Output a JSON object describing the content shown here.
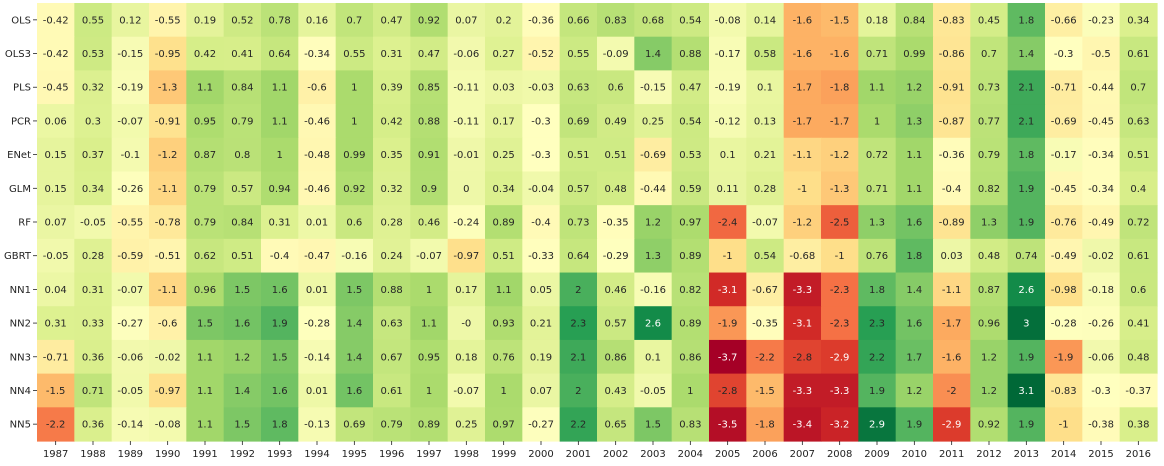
{
  "chart_data": {
    "type": "heatmap",
    "title": "",
    "xlabel": "",
    "ylabel": "",
    "x": [
      "1987",
      "1988",
      "1989",
      "1990",
      "1991",
      "1992",
      "1993",
      "1994",
      "1995",
      "1996",
      "1997",
      "1998",
      "1999",
      "2000",
      "2001",
      "2002",
      "2003",
      "2004",
      "2005",
      "2006",
      "2007",
      "2008",
      "2009",
      "2010",
      "2011",
      "2012",
      "2013",
      "2014",
      "2015",
      "2016"
    ],
    "y": [
      "OLS",
      "OLS3",
      "PLS",
      "PCR",
      "ENet",
      "GLM",
      "RF",
      "GBRT",
      "NN1",
      "NN2",
      "NN3",
      "NN4",
      "NN5"
    ],
    "values": [
      [
        "-0.42",
        "0.55",
        "0.12",
        "-0.55",
        "0.19",
        "0.52",
        "0.78",
        "0.16",
        "0.7",
        "0.47",
        "0.92",
        "0.07",
        "0.2",
        "-0.36",
        "0.66",
        "0.83",
        "0.68",
        "0.54",
        "-0.08",
        "0.14",
        "-1.6",
        "-1.5",
        "0.18",
        "0.84",
        "-0.83",
        "0.45",
        "1.8",
        "-0.66",
        "-0.23",
        "0.34"
      ],
      [
        "-0.42",
        "0.53",
        "-0.15",
        "-0.95",
        "0.42",
        "0.41",
        "0.64",
        "-0.34",
        "0.55",
        "0.31",
        "0.47",
        "-0.06",
        "0.27",
        "-0.52",
        "0.55",
        "-0.09",
        "1.4",
        "0.88",
        "-0.17",
        "0.58",
        "-1.6",
        "-1.6",
        "0.71",
        "0.99",
        "-0.86",
        "0.7",
        "1.4",
        "-0.3",
        "-0.5",
        "0.61"
      ],
      [
        "-0.45",
        "0.32",
        "-0.19",
        "-1.3",
        "1.1",
        "0.84",
        "1.1",
        "-0.6",
        "1",
        "0.39",
        "0.85",
        "-0.11",
        "0.03",
        "-0.03",
        "0.63",
        "0.6",
        "-0.15",
        "0.47",
        "-0.19",
        "0.1",
        "-1.7",
        "-1.8",
        "1.1",
        "1.2",
        "-0.91",
        "0.73",
        "2.1",
        "-0.71",
        "-0.44",
        "0.7"
      ],
      [
        "0.06",
        "0.3",
        "-0.07",
        "-0.91",
        "0.95",
        "0.79",
        "1.1",
        "-0.46",
        "1",
        "0.42",
        "0.88",
        "-0.11",
        "0.17",
        "-0.3",
        "0.69",
        "0.49",
        "0.25",
        "0.54",
        "-0.12",
        "0.13",
        "-1.7",
        "-1.7",
        "1",
        "1.3",
        "-0.87",
        "0.77",
        "2.1",
        "-0.69",
        "-0.45",
        "0.63"
      ],
      [
        "0.15",
        "0.37",
        "-0.1",
        "-1.2",
        "0.87",
        "0.8",
        "1",
        "-0.48",
        "0.99",
        "0.35",
        "0.91",
        "-0.01",
        "0.25",
        "-0.3",
        "0.51",
        "0.51",
        "-0.69",
        "0.53",
        "0.1",
        "0.21",
        "-1.1",
        "-1.2",
        "0.72",
        "1.1",
        "-0.36",
        "0.79",
        "1.8",
        "-0.17",
        "-0.34",
        "0.51"
      ],
      [
        "0.15",
        "0.34",
        "-0.26",
        "-1.1",
        "0.79",
        "0.57",
        "0.94",
        "-0.46",
        "0.92",
        "0.32",
        "0.9",
        "0",
        "0.34",
        "-0.04",
        "0.57",
        "0.48",
        "-0.44",
        "0.59",
        "0.11",
        "0.28",
        "-1",
        "-1.3",
        "0.71",
        "1.1",
        "-0.4",
        "0.82",
        "1.9",
        "-0.45",
        "-0.34",
        "0.4"
      ],
      [
        "0.07",
        "-0.05",
        "-0.55",
        "-0.78",
        "0.79",
        "0.84",
        "0.31",
        "0.01",
        "0.6",
        "0.28",
        "0.46",
        "-0.24",
        "0.89",
        "-0.4",
        "0.73",
        "-0.35",
        "1.2",
        "0.97",
        "-2.4",
        "-0.07",
        "-1.2",
        "-2.5",
        "1.3",
        "1.6",
        "-0.89",
        "1.3",
        "1.9",
        "-0.76",
        "-0.49",
        "0.72"
      ],
      [
        "-0.05",
        "0.28",
        "-0.59",
        "-0.51",
        "0.62",
        "0.51",
        "-0.4",
        "-0.47",
        "-0.16",
        "0.24",
        "-0.07",
        "-0.97",
        "0.51",
        "-0.33",
        "0.64",
        "-0.29",
        "1.3",
        "0.89",
        "-1",
        "0.54",
        "-0.68",
        "-1",
        "0.76",
        "1.8",
        "0.03",
        "0.48",
        "0.74",
        "-0.49",
        "-0.02",
        "0.61"
      ],
      [
        "0.04",
        "0.31",
        "-0.07",
        "-1.1",
        "0.96",
        "1.5",
        "1.6",
        "0.01",
        "1.5",
        "0.88",
        "1",
        "0.17",
        "1.1",
        "0.05",
        "2",
        "0.46",
        "-0.16",
        "0.82",
        "-3.1",
        "-0.67",
        "-3.3",
        "-2.3",
        "1.8",
        "1.4",
        "-1.1",
        "0.87",
        "2.6",
        "-0.98",
        "-0.18",
        "0.6"
      ],
      [
        "0.31",
        "0.33",
        "-0.27",
        "-0.6",
        "1.5",
        "1.6",
        "1.9",
        "-0.28",
        "1.4",
        "0.63",
        "1.1",
        "-0",
        "0.93",
        "0.21",
        "2.3",
        "0.57",
        "2.6",
        "0.89",
        "-1.9",
        "-0.35",
        "-3.1",
        "-2.3",
        "2.3",
        "1.6",
        "-1.7",
        "0.96",
        "3",
        "-0.28",
        "-0.26",
        "0.41"
      ],
      [
        "-0.71",
        "0.36",
        "-0.06",
        "-0.02",
        "1.1",
        "1.2",
        "1.5",
        "-0.14",
        "1.4",
        "0.67",
        "0.95",
        "0.18",
        "0.76",
        "0.19",
        "2.1",
        "0.86",
        "0.1",
        "0.86",
        "-3.7",
        "-2.2",
        "-2.8",
        "-2.9",
        "2.2",
        "1.7",
        "-1.6",
        "1.2",
        "1.9",
        "-1.9",
        "-0.06",
        "0.48"
      ],
      [
        "-1.5",
        "0.71",
        "-0.05",
        "-0.97",
        "1.1",
        "1.4",
        "1.6",
        "0.01",
        "1.6",
        "0.61",
        "1",
        "-0.07",
        "1",
        "0.07",
        "2",
        "0.43",
        "-0.05",
        "1",
        "-2.8",
        "-1.5",
        "-3.3",
        "-3.3",
        "1.9",
        "1.2",
        "-2",
        "1.2",
        "3.1",
        "-0.83",
        "-0.3",
        "-0.37"
      ],
      [
        "-2.2",
        "0.36",
        "-0.14",
        "-0.08",
        "1.1",
        "1.5",
        "1.8",
        "-0.13",
        "0.69",
        "0.79",
        "0.89",
        "0.25",
        "0.97",
        "-0.27",
        "2.2",
        "0.65",
        "1.5",
        "0.83",
        "-3.5",
        "-1.8",
        "-3.4",
        "-3.2",
        "2.9",
        "1.9",
        "-2.9",
        "0.92",
        "1.9",
        "-1",
        "-0.38",
        "0.38"
      ]
    ],
    "colormap": "RdYlGn",
    "vmin": -3.7,
    "vmax": 3.1,
    "grid": false,
    "legend": "none"
  }
}
